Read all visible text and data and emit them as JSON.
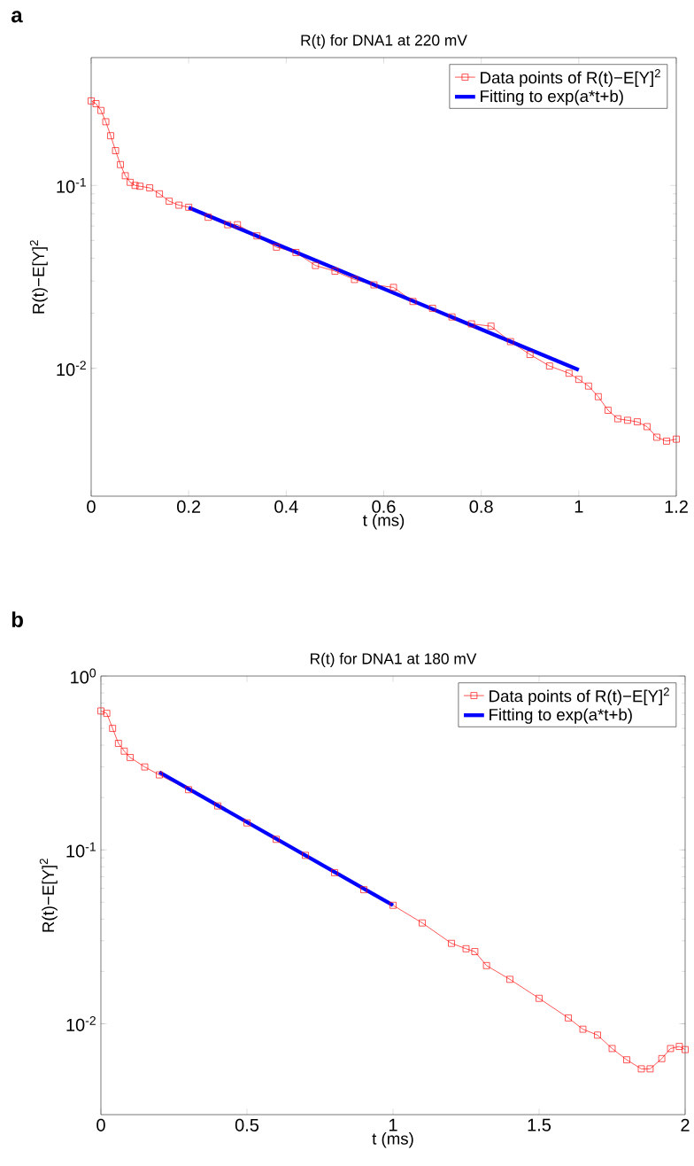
{
  "chart_data": [
    {
      "type": "line",
      "title": "R(t) for DNA1 at 220 mV",
      "xlabel": "t (ms)",
      "ylabel": "R(t)−E[Y]$^{2}$",
      "annotations": [
        "a"
      ],
      "log": "y",
      "legend": "top right",
      "grid": false,
      "xlim": [
        0,
        1.2
      ],
      "xticks": [
        0,
        0.2,
        0.4,
        0.6,
        0.8,
        1,
        1.2
      ],
      "ylim": [
        0.002,
        0.5
      ],
      "yticks": [
        {
          "value": 0.01,
          "label": "10$^{-2}$"
        },
        {
          "value": 0.1,
          "label": "10$^{-1}$"
        }
      ],
      "series": [
        {
          "name": "Data points of R(t)−E[Y]$^{2}$",
          "color": "#ff0000",
          "marker": "square",
          "line_style": "solid",
          "x": [
            0,
            0.01,
            0.02,
            0.03,
            0.04,
            0.05,
            0.06,
            0.07,
            0.08,
            0.09,
            0.1,
            0.12,
            0.14,
            0.16,
            0.18,
            0.2,
            0.24,
            0.28,
            0.3,
            0.34,
            0.38,
            0.42,
            0.46,
            0.5,
            0.54,
            0.58,
            0.62,
            0.66,
            0.7,
            0.74,
            0.78,
            0.82,
            0.86,
            0.9,
            0.94,
            0.98,
            1.0,
            1.02,
            1.04,
            1.06,
            1.08,
            1.1,
            1.12,
            1.14,
            1.16,
            1.18,
            1.2
          ],
          "values": [
            0.29,
            0.28,
            0.257,
            0.223,
            0.187,
            0.155,
            0.13,
            0.113,
            0.104,
            0.1,
            0.099,
            0.097,
            0.09,
            0.082,
            0.078,
            0.076,
            0.067,
            0.061,
            0.061,
            0.053,
            0.046,
            0.043,
            0.0365,
            0.034,
            0.0306,
            0.0286,
            0.0277,
            0.0232,
            0.0213,
            0.0191,
            0.0175,
            0.017,
            0.014,
            0.0119,
            0.0103,
            0.0094,
            0.0087,
            0.008,
            0.007,
            0.0059,
            0.0053,
            0.0052,
            0.0051,
            0.0048,
            0.0042,
            0.004,
            0.0041
          ]
        },
        {
          "name": "Fitting to exp(a*t+b)",
          "color": "#0000ff",
          "marker": "none",
          "line_style": "solid",
          "x": [
            0.2,
            1.0
          ],
          "values": [
            0.0757,
            0.0098
          ]
        }
      ]
    },
    {
      "type": "line",
      "title": "R(t) for DNA1 at 180 mV",
      "xlabel": "t (ms)",
      "ylabel": "R(t)−E[Y]$^{2}$",
      "annotations": [
        "b"
      ],
      "log": "y",
      "legend": "top right",
      "grid": false,
      "xlim": [
        0,
        2
      ],
      "xticks": [
        0,
        0.5,
        1,
        1.5,
        2
      ],
      "ylim": [
        0.003,
        1
      ],
      "yticks": [
        {
          "value": 0.01,
          "label": "10$^{-2}$"
        },
        {
          "value": 0.1,
          "label": "10$^{-1}$"
        },
        {
          "value": 1,
          "label": "10$^{0}$"
        }
      ],
      "series": [
        {
          "name": "Data points of R(t)−E[Y]$^{2}$",
          "color": "#ff0000",
          "marker": "square",
          "line_style": "solid",
          "x": [
            0,
            0.02,
            0.04,
            0.06,
            0.08,
            0.1,
            0.15,
            0.2,
            0.3,
            0.4,
            0.5,
            0.6,
            0.7,
            0.8,
            0.9,
            1.0,
            1.1,
            1.2,
            1.25,
            1.28,
            1.32,
            1.4,
            1.5,
            1.6,
            1.65,
            1.7,
            1.75,
            1.8,
            1.85,
            1.88,
            1.92,
            1.95,
            1.98,
            2.0
          ],
          "values": [
            0.63,
            0.61,
            0.5,
            0.41,
            0.37,
            0.34,
            0.3,
            0.27,
            0.222,
            0.179,
            0.143,
            0.115,
            0.093,
            0.074,
            0.059,
            0.048,
            0.038,
            0.029,
            0.027,
            0.026,
            0.0216,
            0.018,
            0.014,
            0.0108,
            0.0093,
            0.0086,
            0.0072,
            0.0062,
            0.0055,
            0.0055,
            0.0063,
            0.0072,
            0.0074,
            0.0071
          ]
        },
        {
          "name": "Fitting to exp(a*t+b)",
          "color": "#0000ff",
          "marker": "none",
          "line_style": "solid",
          "x": [
            0.2,
            1.0
          ],
          "values": [
            0.28,
            0.048
          ]
        }
      ]
    }
  ]
}
